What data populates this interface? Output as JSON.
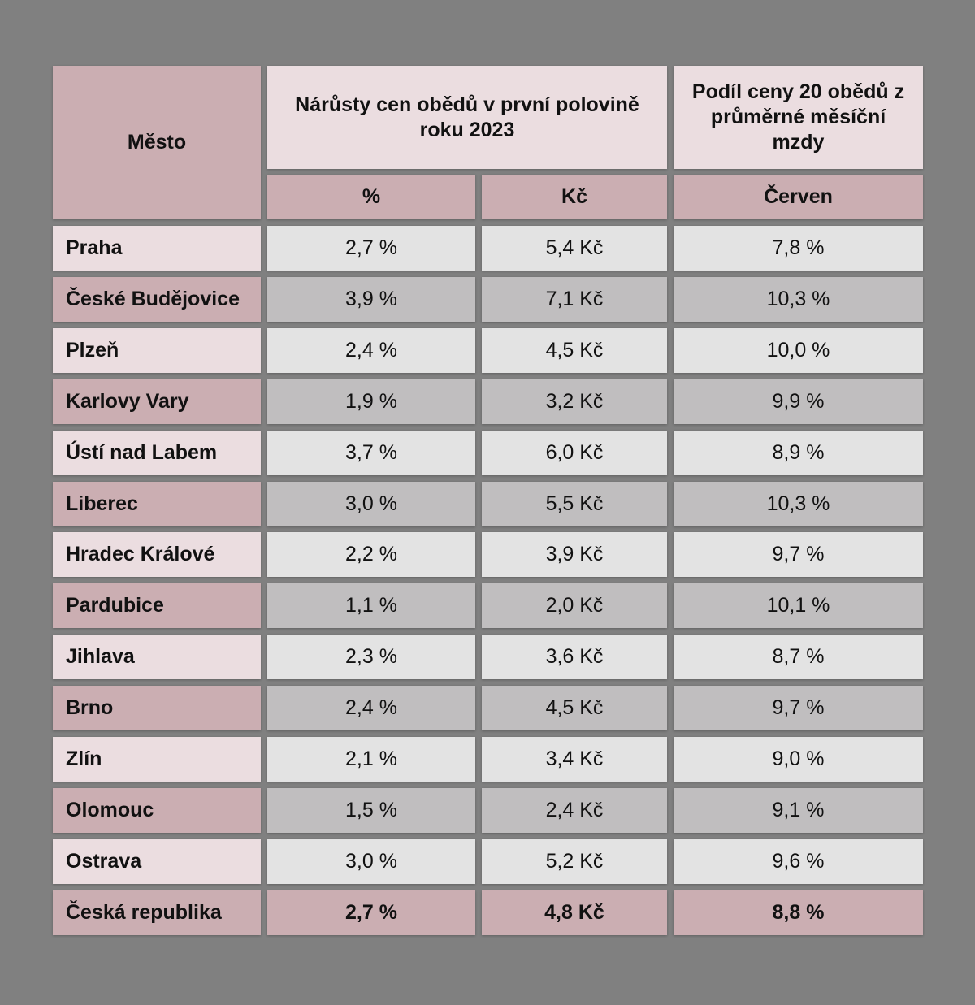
{
  "colors": {
    "background": "#808080",
    "header_accent": "#cbaeb2",
    "header_light": "#ebdde0",
    "city_light": "#ebdde0",
    "city_dark": "#cbaeb2",
    "value_light": "#e3e3e3",
    "value_dark": "#c0bebf"
  },
  "chart_data": {
    "type": "table",
    "header": {
      "city": "Město",
      "increase_group": "Nárůsty cen obědů v první polovině roku 2023",
      "share_group": "Podíl ceny 20 obědů z průměrné měsíční mzdy",
      "col_percent": "%",
      "col_czk": "Kč",
      "col_june": "Červen"
    },
    "rows": [
      {
        "city": "Praha",
        "percent": "2,7 %",
        "czk": "5,4 Kč",
        "june": "7,8 %"
      },
      {
        "city": "České Budějovice",
        "percent": "3,9 %",
        "czk": "7,1 Kč",
        "june": "10,3 %"
      },
      {
        "city": "Plzeň",
        "percent": "2,4 %",
        "czk": "4,5 Kč",
        "june": "10,0 %"
      },
      {
        "city": "Karlovy Vary",
        "percent": "1,9 %",
        "czk": "3,2 Kč",
        "june": "9,9 %"
      },
      {
        "city": "Ústí nad Labem",
        "percent": "3,7 %",
        "czk": "6,0 Kč",
        "june": "8,9 %"
      },
      {
        "city": "Liberec",
        "percent": "3,0 %",
        "czk": "5,5 Kč",
        "june": "10,3 %"
      },
      {
        "city": "Hradec Králové",
        "percent": "2,2 %",
        "czk": "3,9 Kč",
        "june": "9,7 %"
      },
      {
        "city": "Pardubice",
        "percent": "1,1 %",
        "czk": "2,0 Kč",
        "june": "10,1 %"
      },
      {
        "city": "Jihlava",
        "percent": "2,3 %",
        "czk": "3,6 Kč",
        "june": "8,7 %"
      },
      {
        "city": "Brno",
        "percent": "2,4 %",
        "czk": "4,5 Kč",
        "june": "9,7 %"
      },
      {
        "city": "Zlín",
        "percent": "2,1 %",
        "czk": "3,4 Kč",
        "june": "9,0 %"
      },
      {
        "city": "Olomouc",
        "percent": "1,5 %",
        "czk": "2,4 Kč",
        "june": "9,1 %"
      },
      {
        "city": "Ostrava",
        "percent": "3,0 %",
        "czk": "5,2 Kč",
        "june": "9,6 %"
      },
      {
        "city": "Česká republika",
        "percent": "2,7 %",
        "czk": "4,8 Kč",
        "june": "8,8 %"
      }
    ]
  }
}
